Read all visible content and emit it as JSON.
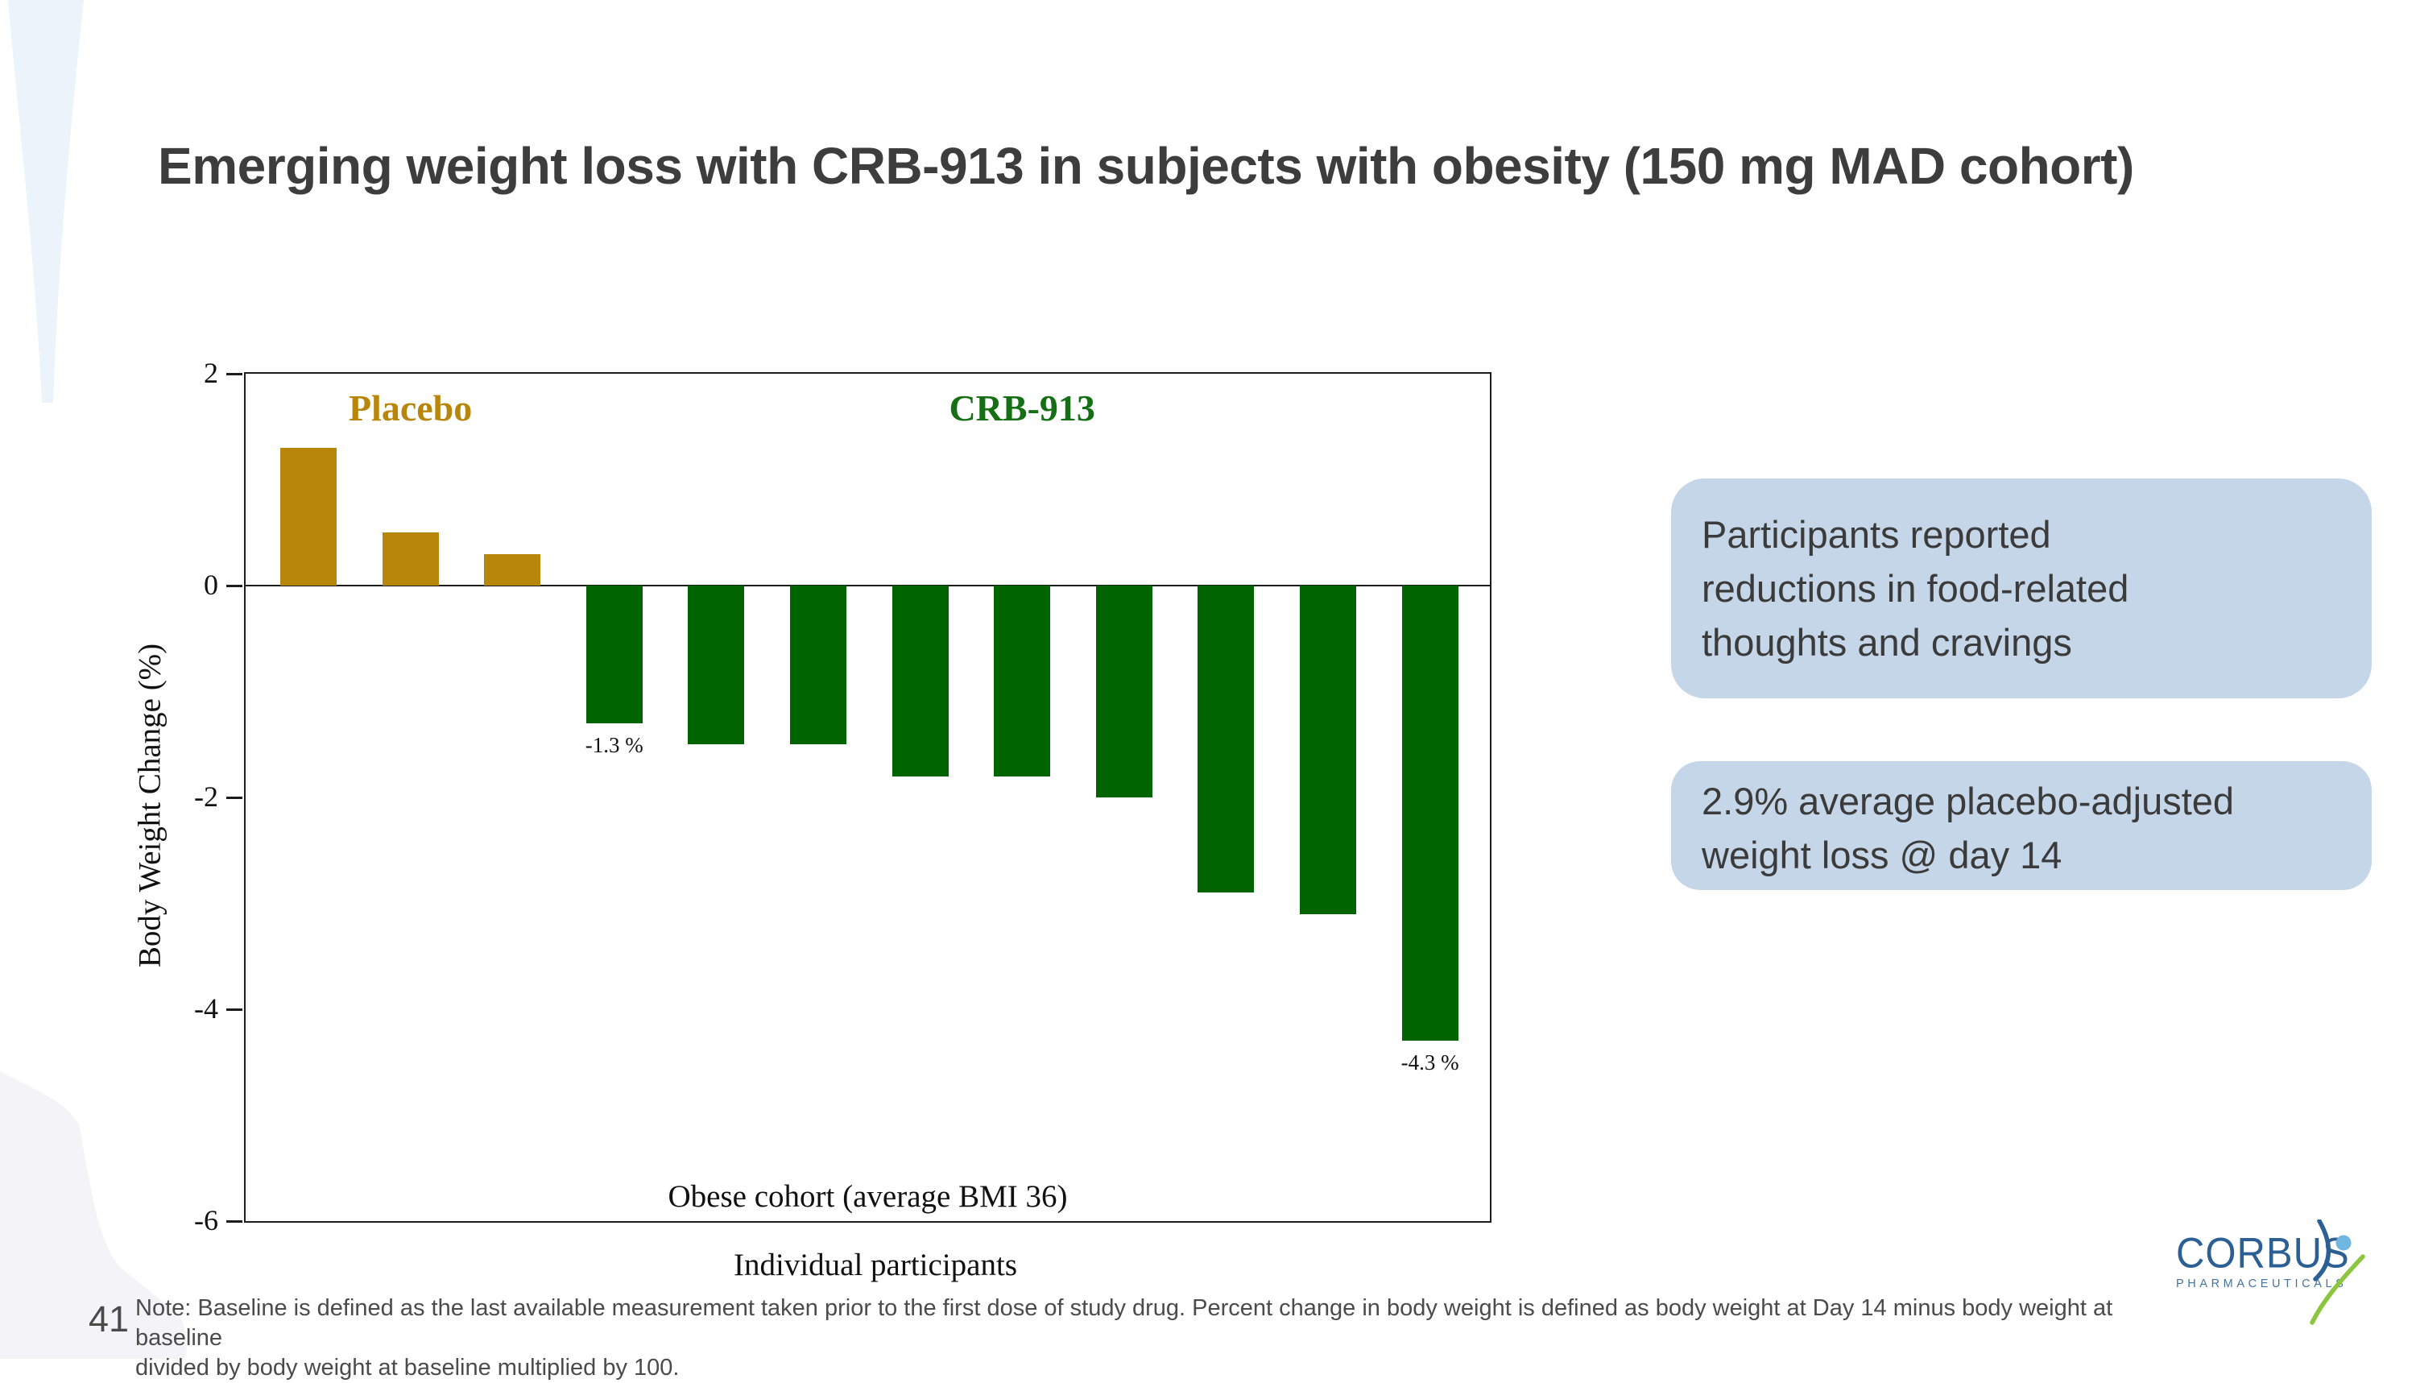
{
  "slide": {
    "title": "Emerging weight loss with CRB-913 in subjects with obesity (150 mg MAD cohort)",
    "page_number": "41",
    "note": "Note: Baseline is defined as the last available measurement taken prior to the first dose of study drug. Percent change in body weight is defined as body weight at Day 14 minus body weight at baseline\ndivided by body weight at baseline multiplied by 100."
  },
  "chart_data": {
    "type": "bar",
    "title": "",
    "ylabel": "Body Weight Change (%)",
    "xlabel": "Individual participants",
    "inner_caption": "Obese cohort (average BMI 36)",
    "ylim": [
      -6,
      2
    ],
    "yticks": [
      2,
      0,
      -2,
      -4,
      -6
    ],
    "grid": false,
    "groups": [
      {
        "label": "Placebo",
        "label_color": "#b8860b",
        "bar_color": "#b8860b",
        "values": [
          1.3,
          0.5,
          0.3
        ]
      },
      {
        "label": "CRB-913",
        "label_color": "#157015",
        "bar_color": "#006400",
        "values": [
          -1.3,
          -1.5,
          -1.5,
          -1.8,
          -1.8,
          -2.0,
          -2.9,
          -3.1,
          -4.3
        ]
      }
    ],
    "bar_value_labels": [
      {
        "bar_index": 3,
        "text": "-1.3 %"
      },
      {
        "bar_index": 11,
        "text": "-4.3 %"
      }
    ]
  },
  "callouts": [
    {
      "text": "Participants reported\nreductions in food-related\nthoughts and cravings"
    },
    {
      "text": "2.9% average placebo-adjusted\nweight loss @ day 14"
    }
  ],
  "logo": {
    "name": "CORBUS",
    "subtitle": "PHARMACEUTICALS"
  },
  "colors": {
    "callout_bg": "#c6d6e9",
    "placebo_gold": "#b8860b",
    "crb_green": "#006400",
    "logo_blue": "#2c5f93",
    "logo_green": "#8cc63e",
    "logo_head_blue": "#6fb7e0"
  }
}
